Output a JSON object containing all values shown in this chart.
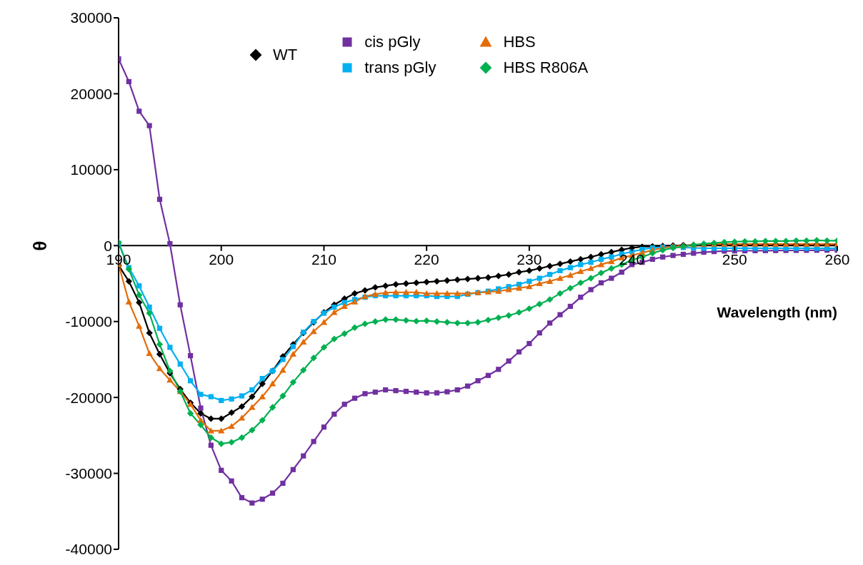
{
  "chart_data": {
    "type": "line",
    "xlabel": "Wavelength (nm)",
    "ylabel": "θ",
    "legend": "top",
    "x": [
      190,
      191,
      192,
      193,
      194,
      195,
      196,
      197,
      198,
      199,
      200,
      201,
      202,
      203,
      204,
      205,
      206,
      207,
      208,
      209,
      210,
      211,
      212,
      213,
      214,
      215,
      216,
      217,
      218,
      219,
      220,
      221,
      222,
      223,
      224,
      225,
      226,
      227,
      228,
      229,
      230,
      231,
      232,
      233,
      234,
      235,
      236,
      237,
      238,
      239,
      240,
      241,
      242,
      243,
      244,
      245,
      246,
      247,
      248,
      249,
      250,
      251,
      252,
      253,
      254,
      255,
      256,
      257,
      258,
      259,
      260
    ],
    "xlim": [
      190,
      260
    ],
    "xticks": [
      190,
      200,
      210,
      220,
      230,
      240,
      250,
      260
    ],
    "ylim": [
      -40000,
      30000
    ],
    "yticks": [
      -40000,
      -30000,
      -20000,
      -10000,
      0,
      10000,
      20000,
      30000
    ],
    "series": [
      {
        "name": "WT",
        "color": "#000000",
        "marker": "diamond",
        "values": [
          -2600,
          -4700,
          -7500,
          -11500,
          -14300,
          -16800,
          -18900,
          -20700,
          -22100,
          -22800,
          -22800,
          -22000,
          -21200,
          -19900,
          -18200,
          -16500,
          -14600,
          -13000,
          -11500,
          -10100,
          -8800,
          -7800,
          -7000,
          -6300,
          -5900,
          -5500,
          -5300,
          -5100,
          -5000,
          -4900,
          -4800,
          -4700,
          -4600,
          -4500,
          -4400,
          -4300,
          -4200,
          -4000,
          -3800,
          -3500,
          -3300,
          -3000,
          -2700,
          -2400,
          -2100,
          -1800,
          -1500,
          -1150,
          -850,
          -550,
          -300,
          -150,
          -100,
          -50,
          0,
          50,
          50,
          100,
          100,
          100,
          100,
          100,
          100,
          100,
          100,
          100,
          100,
          100,
          100,
          100,
          100
        ]
      },
      {
        "name": "cis pGly",
        "color": "#7030a0",
        "marker": "square",
        "values": [
          24600,
          21600,
          17700,
          15800,
          6100,
          250,
          -7800,
          -14500,
          -21400,
          -26300,
          -29600,
          -31000,
          -33200,
          -33900,
          -33400,
          -32600,
          -31300,
          -29500,
          -27700,
          -25800,
          -23900,
          -22200,
          -20900,
          -20100,
          -19500,
          -19300,
          -19000,
          -19100,
          -19200,
          -19300,
          -19400,
          -19400,
          -19250,
          -19000,
          -18500,
          -17800,
          -17100,
          -16300,
          -15200,
          -14000,
          -12900,
          -11500,
          -10200,
          -9100,
          -8000,
          -6800,
          -5800,
          -4900,
          -4300,
          -3500,
          -2500,
          -2200,
          -1800,
          -1500,
          -1300,
          -1150,
          -1000,
          -870,
          -780,
          -720,
          -700,
          -680,
          -670,
          -660,
          -650,
          -640,
          -630,
          -620,
          -610,
          -600,
          -600
        ]
      },
      {
        "name": "trans pGly",
        "color": "#00b0f0",
        "marker": "square",
        "values": [
          300,
          -2900,
          -5300,
          -8100,
          -10900,
          -13400,
          -15600,
          -17800,
          -19600,
          -19900,
          -20400,
          -20200,
          -19800,
          -19000,
          -17500,
          -16500,
          -15000,
          -13300,
          -11400,
          -10000,
          -8900,
          -8100,
          -7500,
          -7100,
          -6800,
          -6600,
          -6600,
          -6600,
          -6600,
          -6600,
          -6600,
          -6700,
          -6700,
          -6700,
          -6400,
          -6200,
          -6000,
          -5700,
          -5400,
          -5100,
          -4700,
          -4300,
          -3800,
          -3300,
          -2900,
          -2500,
          -2200,
          -1800,
          -1500,
          -1100,
          -800,
          -500,
          -300,
          -200,
          -200,
          -250,
          -300,
          -350,
          -350,
          -350,
          -350,
          -350,
          -350,
          -350,
          -350,
          -350,
          -350,
          -350,
          -350,
          -350,
          -350
        ]
      },
      {
        "name": "HBS",
        "color": "#e36c09",
        "marker": "triangle",
        "values": [
          -2500,
          -7400,
          -10600,
          -14200,
          -16200,
          -17700,
          -19200,
          -20900,
          -23000,
          -24400,
          -24400,
          -23800,
          -22700,
          -21300,
          -19900,
          -18200,
          -16400,
          -14300,
          -12700,
          -11300,
          -10100,
          -8800,
          -8000,
          -7400,
          -6700,
          -6400,
          -6200,
          -6150,
          -6150,
          -6150,
          -6300,
          -6300,
          -6300,
          -6300,
          -6300,
          -6200,
          -6100,
          -6000,
          -5800,
          -5600,
          -5400,
          -5000,
          -4700,
          -4300,
          -3900,
          -3400,
          -3000,
          -2500,
          -2100,
          -1600,
          -1300,
          -950,
          -600,
          -300,
          -100,
          0,
          100,
          150,
          200,
          200,
          200,
          200,
          200,
          200,
          200,
          200,
          200,
          200,
          200,
          200,
          200
        ]
      },
      {
        "name": "HBS R806A",
        "color": "#00b050",
        "marker": "diamond",
        "values": [
          400,
          -3100,
          -6500,
          -8900,
          -13000,
          -16500,
          -19200,
          -22100,
          -23600,
          -25300,
          -26100,
          -25900,
          -25300,
          -24300,
          -23000,
          -21300,
          -19800,
          -18000,
          -16400,
          -14800,
          -13400,
          -12300,
          -11600,
          -10800,
          -10300,
          -10000,
          -9750,
          -9750,
          -9850,
          -9950,
          -9900,
          -10000,
          -10100,
          -10200,
          -10200,
          -10100,
          -9800,
          -9500,
          -9200,
          -8800,
          -8300,
          -7700,
          -7100,
          -6300,
          -5600,
          -4900,
          -4300,
          -3600,
          -3000,
          -2500,
          -1900,
          -1500,
          -1000,
          -600,
          -300,
          -100,
          100,
          250,
          350,
          450,
          500,
          550,
          550,
          600,
          600,
          600,
          650,
          650,
          700,
          650,
          650
        ]
      }
    ]
  }
}
